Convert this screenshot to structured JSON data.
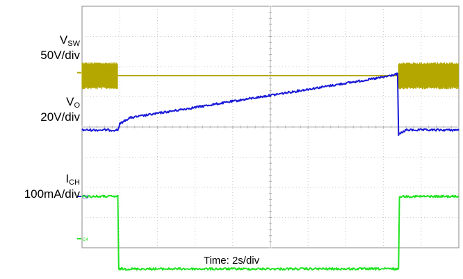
{
  "chart_data": {
    "type": "line",
    "title": "",
    "xlabel": "Time: 2s/div",
    "ylabel": "",
    "grid": true,
    "x_divisions": 10,
    "y_divisions": 8,
    "x_unit": "s",
    "x_per_div": 2,
    "xlim": [
      0,
      20
    ],
    "series": [
      {
        "name": "VSW",
        "label_main": "V",
        "label_sub": "SW",
        "scale": "50V/div",
        "channel": "C1",
        "color": "#b4a800",
        "note": "switching burst before ~1.9 s and after ~16.8 s, flat line between",
        "x": [
          0,
          1.9,
          1.9,
          16.8,
          16.8,
          20
        ],
        "y_div": [
          2.3,
          2.3,
          2.3,
          2.3,
          2.3,
          2.3
        ],
        "burst_intervals": [
          [
            0,
            1.9
          ],
          [
            16.8,
            20
          ]
        ],
        "burst_half_height_div": 0.45
      },
      {
        "name": "VO",
        "label_main": "V",
        "label_sub": "O",
        "scale": "20V/div",
        "color": "#1a1ad8",
        "x": [
          0,
          1.9,
          2.0,
          2.5,
          4,
          6,
          8,
          10,
          12,
          14,
          16,
          16.7,
          16.75,
          16.8,
          17.2,
          20
        ],
        "y_div": [
          4.1,
          4.1,
          3.9,
          3.7,
          3.55,
          3.35,
          3.15,
          2.95,
          2.75,
          2.55,
          2.35,
          2.25,
          2.25,
          4.25,
          4.1,
          4.1
        ]
      },
      {
        "name": "ICH",
        "label_main": "I",
        "label_sub": "CH",
        "scale": "100mA/div",
        "channel": "C3",
        "color": "#22e322",
        "x": [
          0,
          1.9,
          1.95,
          16.8,
          16.85,
          20
        ],
        "y_div": [
          6.3,
          6.3,
          8.7,
          8.7,
          6.3,
          6.3
        ]
      }
    ],
    "ground_markers": [
      {
        "channel": "C1",
        "color": "#b4a800",
        "y_div": 2.2
      },
      {
        "channel": "C3",
        "color": "#1a1ad8",
        "y_div": 6.3
      },
      {
        "channel": "C4",
        "color": "#22e322",
        "y_div": 7.7
      }
    ]
  }
}
